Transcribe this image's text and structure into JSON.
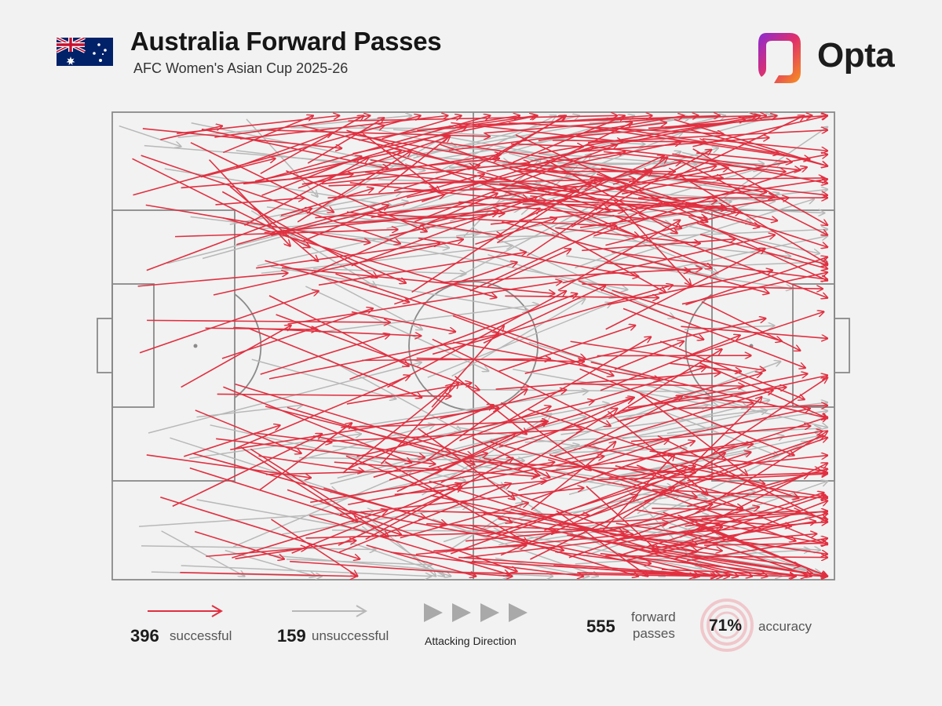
{
  "header": {
    "title": "Australia Forward Passes",
    "subtitle": "AFC Women's Asian Cup 2025-26",
    "brand": "Opta"
  },
  "legend": {
    "successful_count": "396",
    "successful_label": "successful",
    "unsuccessful_count": "159",
    "unsuccessful_label": "unsuccessful",
    "direction_label": "Attacking Direction",
    "total_count": "555",
    "total_label_1": "forward",
    "total_label_2": "passes",
    "accuracy_value": "71%",
    "accuracy_label": "accuracy"
  },
  "colors": {
    "successful": "#e03040",
    "unsuccessful": "#b8b8b8",
    "pitch_line": "#8a8a8a",
    "background": "#f2f2f2"
  },
  "chart_data": {
    "type": "scatter",
    "title": "Australia Forward Passes",
    "subtitle": "AFC Women's Asian Cup 2025-26",
    "description": "Pass map: arrows from start to end location on a 105x68 pitch, attacking left to right",
    "xlim": [
      0,
      105
    ],
    "ylim": [
      0,
      68
    ],
    "series": [
      {
        "name": "successful",
        "count": 396,
        "color": "#e03040"
      },
      {
        "name": "unsuccessful",
        "count": 159,
        "color": "#b8b8b8"
      }
    ],
    "total_forward_passes": 555,
    "accuracy_pct": 71,
    "sample_passes": [
      {
        "outcome": "successful",
        "x1": 7,
        "y1": 64,
        "x2": 16,
        "y2": 66
      },
      {
        "outcome": "successful",
        "x1": 18,
        "y1": 60,
        "x2": 32,
        "y2": 65
      },
      {
        "outcome": "successful",
        "x1": 10,
        "y1": 57,
        "x2": 35,
        "y2": 59
      },
      {
        "outcome": "successful",
        "x1": 5,
        "y1": 45,
        "x2": 29,
        "y2": 54
      },
      {
        "outcome": "successful",
        "x1": 4,
        "y1": 33,
        "x2": 30,
        "y2": 42
      },
      {
        "outcome": "successful",
        "x1": 10,
        "y1": 28,
        "x2": 26,
        "y2": 37
      },
      {
        "outcome": "successful",
        "x1": 7,
        "y1": 12,
        "x2": 36,
        "y2": 3
      },
      {
        "outcome": "successful",
        "x1": 12,
        "y1": 7,
        "x2": 25,
        "y2": 3
      },
      {
        "outcome": "successful",
        "x1": 33,
        "y1": 4,
        "x2": 58,
        "y2": 14
      },
      {
        "outcome": "successful",
        "x1": 40,
        "y1": 28,
        "x2": 66,
        "y2": 42
      },
      {
        "outcome": "successful",
        "x1": 45,
        "y1": 55,
        "x2": 70,
        "y2": 63
      },
      {
        "outcome": "successful",
        "x1": 52,
        "y1": 42,
        "x2": 80,
        "y2": 55
      },
      {
        "outcome": "successful",
        "x1": 55,
        "y1": 20,
        "x2": 85,
        "y2": 12
      },
      {
        "outcome": "successful",
        "x1": 60,
        "y1": 30,
        "x2": 95,
        "y2": 38
      },
      {
        "outcome": "successful",
        "x1": 62,
        "y1": 62,
        "x2": 92,
        "y2": 67
      },
      {
        "outcome": "successful",
        "x1": 65,
        "y1": 8,
        "x2": 100,
        "y2": 10
      },
      {
        "outcome": "successful",
        "x1": 70,
        "y1": 50,
        "x2": 101,
        "y2": 60
      },
      {
        "outcome": "successful",
        "x1": 75,
        "y1": 25,
        "x2": 98,
        "y2": 28
      },
      {
        "outcome": "successful",
        "x1": 78,
        "y1": 5,
        "x2": 100,
        "y2": 2
      },
      {
        "outcome": "successful",
        "x1": 72,
        "y1": 40,
        "x2": 96,
        "y2": 45
      },
      {
        "outcome": "unsuccessful",
        "x1": 1,
        "y1": 66,
        "x2": 10,
        "y2": 63
      },
      {
        "outcome": "unsuccessful",
        "x1": 36,
        "y1": 66,
        "x2": 50,
        "y2": 63
      },
      {
        "outcome": "unsuccessful",
        "x1": 8,
        "y1": 46,
        "x2": 43,
        "y2": 55
      },
      {
        "outcome": "unsuccessful",
        "x1": 30,
        "y1": 36,
        "x2": 62,
        "y2": 40
      },
      {
        "outcome": "unsuccessful",
        "x1": 50,
        "y1": 50,
        "x2": 90,
        "y2": 55
      },
      {
        "outcome": "unsuccessful",
        "x1": 60,
        "y1": 20,
        "x2": 103,
        "y2": 22
      },
      {
        "outcome": "unsuccessful",
        "x1": 68,
        "y1": 6,
        "x2": 103,
        "y2": 1
      },
      {
        "outcome": "unsuccessful",
        "x1": 80,
        "y1": 45,
        "x2": 104,
        "y2": 50
      }
    ]
  }
}
